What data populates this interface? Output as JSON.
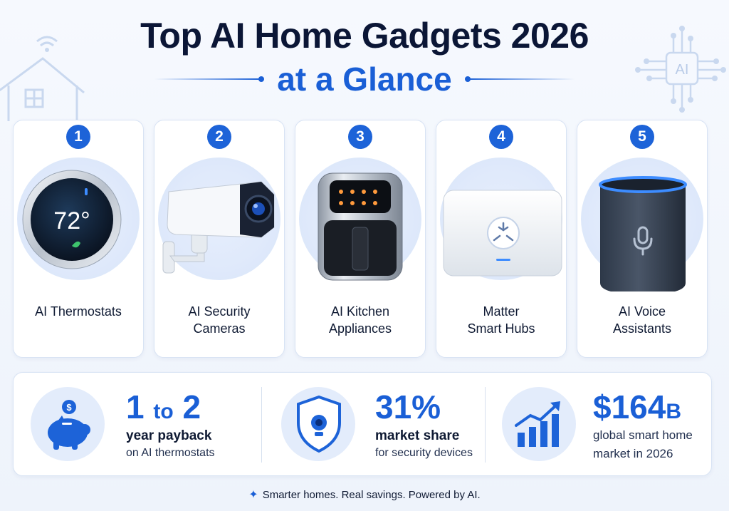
{
  "header": {
    "title_line1": "Top AI Home Gadgets 2026",
    "title_line2": "at a Glance"
  },
  "decor": {
    "chip_label": "AI"
  },
  "gadgets": [
    {
      "number": "1",
      "label_line1": "AI Thermostats",
      "label_line2": "",
      "icon": "smart-thermostat",
      "display": "72°"
    },
    {
      "number": "2",
      "label_line1": "AI Security",
      "label_line2": "Cameras",
      "icon": "security-camera"
    },
    {
      "number": "3",
      "label_line1": "AI Kitchen",
      "label_line2": "Appliances",
      "icon": "air-fryer"
    },
    {
      "number": "4",
      "label_line1": "Matter",
      "label_line2": "Smart Hubs",
      "icon": "matter-hub"
    },
    {
      "number": "5",
      "label_line1": "AI Voice",
      "label_line2": "Assistants",
      "icon": "smart-speaker"
    }
  ],
  "stats": [
    {
      "icon": "piggy-bank",
      "value_a": "1",
      "value_mid": "to",
      "value_b": "2",
      "bold": "year payback",
      "sub": "on AI thermostats"
    },
    {
      "icon": "security-shield",
      "value": "31%",
      "bold": "market share",
      "sub": "for security devices"
    },
    {
      "icon": "growth-chart",
      "value": "$164",
      "value_suffix": "B",
      "bold": "global smart home",
      "sub": "market in 2026"
    }
  ],
  "footer": {
    "tagline": "Smarter homes. Real savings. Powered by AI."
  },
  "colors": {
    "accent": "#1a5fd6",
    "title": "#0b1636",
    "card_border": "#d8e3f4"
  }
}
